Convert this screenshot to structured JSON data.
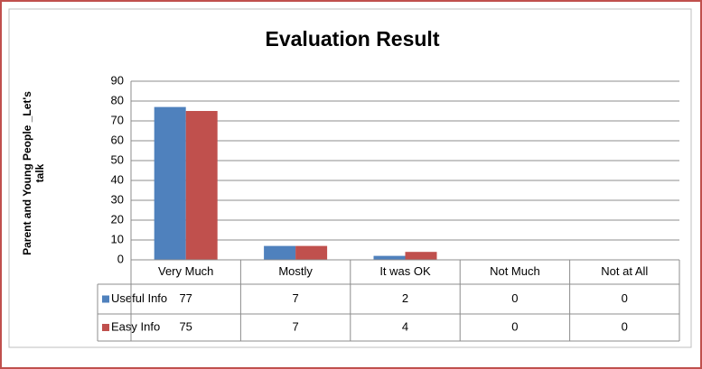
{
  "chart_data": {
    "type": "bar",
    "title": "Evaluation Result",
    "y_label": "Parent and Young People _Let's talk",
    "categories": [
      "Very Much",
      "Mostly",
      "It was OK",
      "Not Much",
      "Not at All"
    ],
    "series": [
      {
        "name": "Useful Info",
        "color": "#4f81bd",
        "values": [
          77,
          7,
          2,
          0,
          0
        ]
      },
      {
        "name": "Easy Info",
        "color": "#c0504d",
        "values": [
          75,
          7,
          4,
          0,
          0
        ]
      }
    ],
    "ylim": [
      0,
      90
    ],
    "yticks": [
      0,
      10,
      20,
      30,
      40,
      50,
      60,
      70,
      80,
      90
    ],
    "grid": true,
    "data_table": true
  }
}
